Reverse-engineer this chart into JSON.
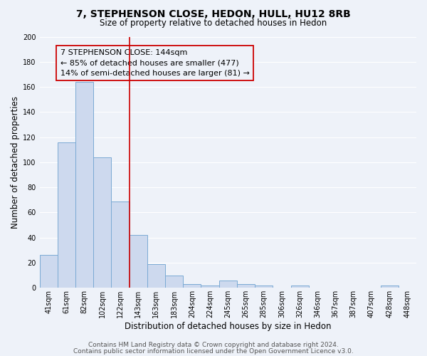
{
  "title": "7, STEPHENSON CLOSE, HEDON, HULL, HU12 8RB",
  "subtitle": "Size of property relative to detached houses in Hedon",
  "xlabel": "Distribution of detached houses by size in Hedon",
  "ylabel": "Number of detached properties",
  "bar_labels": [
    "41sqm",
    "61sqm",
    "82sqm",
    "102sqm",
    "122sqm",
    "143sqm",
    "163sqm",
    "183sqm",
    "204sqm",
    "224sqm",
    "245sqm",
    "265sqm",
    "285sqm",
    "306sqm",
    "326sqm",
    "346sqm",
    "367sqm",
    "387sqm",
    "407sqm",
    "428sqm",
    "448sqm"
  ],
  "bar_values": [
    26,
    116,
    164,
    104,
    69,
    42,
    19,
    10,
    3,
    2,
    6,
    3,
    2,
    0,
    2,
    0,
    0,
    0,
    0,
    2,
    0
  ],
  "bar_color": "#cdd9ee",
  "bar_edge_color": "#7aaad4",
  "vline_color": "#cc0000",
  "annotation_line1": "7 STEPHENSON CLOSE: 144sqm",
  "annotation_line2": "← 85% of detached houses are smaller (477)",
  "annotation_line3": "14% of semi-detached houses are larger (81) →",
  "box_edge_color": "#cc0000",
  "ylim": [
    0,
    200
  ],
  "yticks": [
    0,
    20,
    40,
    60,
    80,
    100,
    120,
    140,
    160,
    180,
    200
  ],
  "footer1": "Contains HM Land Registry data © Crown copyright and database right 2024.",
  "footer2": "Contains public sector information licensed under the Open Government Licence v3.0.",
  "bg_color": "#eef2f9",
  "grid_color": "#ffffff",
  "title_fontsize": 10,
  "subtitle_fontsize": 8.5,
  "axis_label_fontsize": 8.5,
  "tick_fontsize": 7,
  "annotation_fontsize": 8,
  "footer_fontsize": 6.5
}
